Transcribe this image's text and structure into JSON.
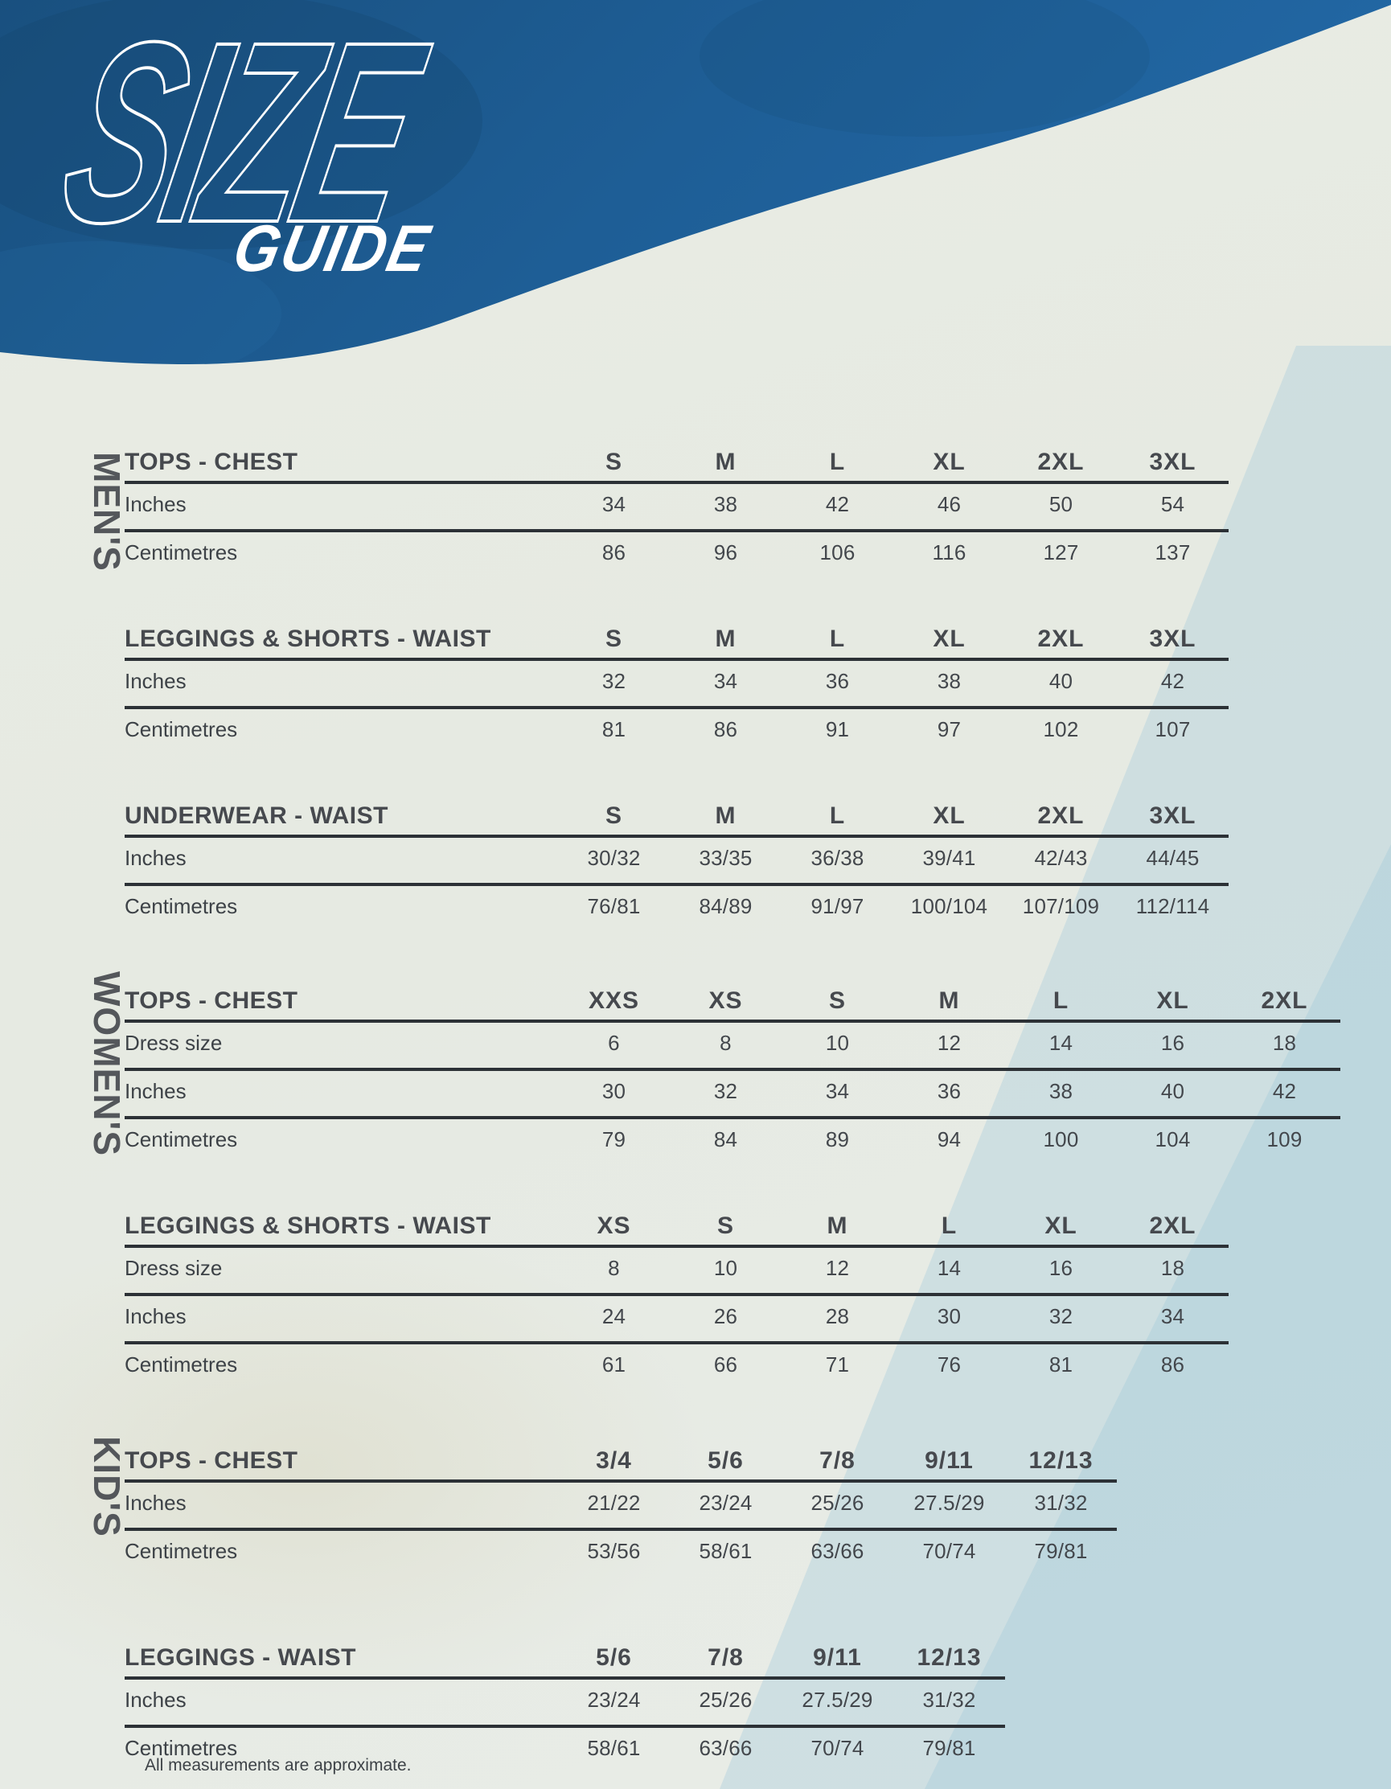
{
  "logo": {
    "size": "SIZE",
    "guide": "GUIDE"
  },
  "footnote": "All measurements are approximate.",
  "colors": {
    "header_blue": "#1e5e96",
    "header_blue_dark": "#174b74",
    "rule": "#2c3136",
    "title_text": "#46494e",
    "value_text": "#43474c",
    "section_label_text": "#54575b",
    "background": "#e7eae3",
    "background_band_blue": "#abcedd"
  },
  "sections": [
    {
      "label": "MEN'S",
      "tables": [
        {
          "title": "TOPS - CHEST",
          "sizes": [
            "S",
            "M",
            "L",
            "XL",
            "2XL",
            "3XL"
          ],
          "rows": [
            {
              "label": "Inches",
              "values": [
                "34",
                "38",
                "42",
                "46",
                "50",
                "54"
              ]
            },
            {
              "label": "Centimetres",
              "values": [
                "86",
                "96",
                "106",
                "116",
                "127",
                "137"
              ]
            }
          ]
        },
        {
          "title": "LEGGINGS & SHORTS - WAIST",
          "sizes": [
            "S",
            "M",
            "L",
            "XL",
            "2XL",
            "3XL"
          ],
          "rows": [
            {
              "label": "Inches",
              "values": [
                "32",
                "34",
                "36",
                "38",
                "40",
                "42"
              ]
            },
            {
              "label": "Centimetres",
              "values": [
                "81",
                "86",
                "91",
                "97",
                "102",
                "107"
              ]
            }
          ]
        },
        {
          "title": "UNDERWEAR - WAIST",
          "sizes": [
            "S",
            "M",
            "L",
            "XL",
            "2XL",
            "3XL"
          ],
          "rows": [
            {
              "label": "Inches",
              "values": [
                "30/32",
                "33/35",
                "36/38",
                "39/41",
                "42/43",
                "44/45"
              ]
            },
            {
              "label": "Centimetres",
              "values": [
                "76/81",
                "84/89",
                "91/97",
                "100/104",
                "107/109",
                "112/114"
              ]
            }
          ]
        }
      ]
    },
    {
      "label": "WOMEN'S",
      "tables": [
        {
          "title": "TOPS - CHEST",
          "sizes": [
            "XXS",
            "XS",
            "S",
            "M",
            "L",
            "XL",
            "2XL"
          ],
          "rows": [
            {
              "label": "Dress size",
              "values": [
                "6",
                "8",
                "10",
                "12",
                "14",
                "16",
                "18"
              ]
            },
            {
              "label": "Inches",
              "values": [
                "30",
                "32",
                "34",
                "36",
                "38",
                "40",
                "42"
              ]
            },
            {
              "label": "Centimetres",
              "values": [
                "79",
                "84",
                "89",
                "94",
                "100",
                "104",
                "109"
              ]
            }
          ]
        },
        {
          "title": "LEGGINGS & SHORTS - WAIST",
          "sizes": [
            "XS",
            "S",
            "M",
            "L",
            "XL",
            "2XL"
          ],
          "rows": [
            {
              "label": "Dress size",
              "values": [
                "8",
                "10",
                "12",
                "14",
                "16",
                "18"
              ]
            },
            {
              "label": "Inches",
              "values": [
                "24",
                "26",
                "28",
                "30",
                "32",
                "34"
              ]
            },
            {
              "label": "Centimetres",
              "values": [
                "61",
                "66",
                "71",
                "76",
                "81",
                "86"
              ]
            }
          ]
        }
      ]
    },
    {
      "label": "KID'S",
      "tables": [
        {
          "title": "TOPS - CHEST",
          "sizes": [
            "3/4",
            "5/6",
            "7/8",
            "9/11",
            "12/13"
          ],
          "rows": [
            {
              "label": "Inches",
              "values": [
                "21/22",
                "23/24",
                "25/26",
                "27.5/29",
                "31/32"
              ]
            },
            {
              "label": "Centimetres",
              "values": [
                "53/56",
                "58/61",
                "63/66",
                "70/74",
                "79/81"
              ]
            }
          ]
        },
        {
          "title": "LEGGINGS - WAIST",
          "sizes": [
            "5/6",
            "7/8",
            "9/11",
            "12/13"
          ],
          "rows": [
            {
              "label": "Inches",
              "values": [
                "23/24",
                "25/26",
                "27.5/29",
                "31/32"
              ]
            },
            {
              "label": "Centimetres",
              "values": [
                "58/61",
                "63/66",
                "70/74",
                "79/81"
              ]
            }
          ]
        }
      ]
    }
  ]
}
